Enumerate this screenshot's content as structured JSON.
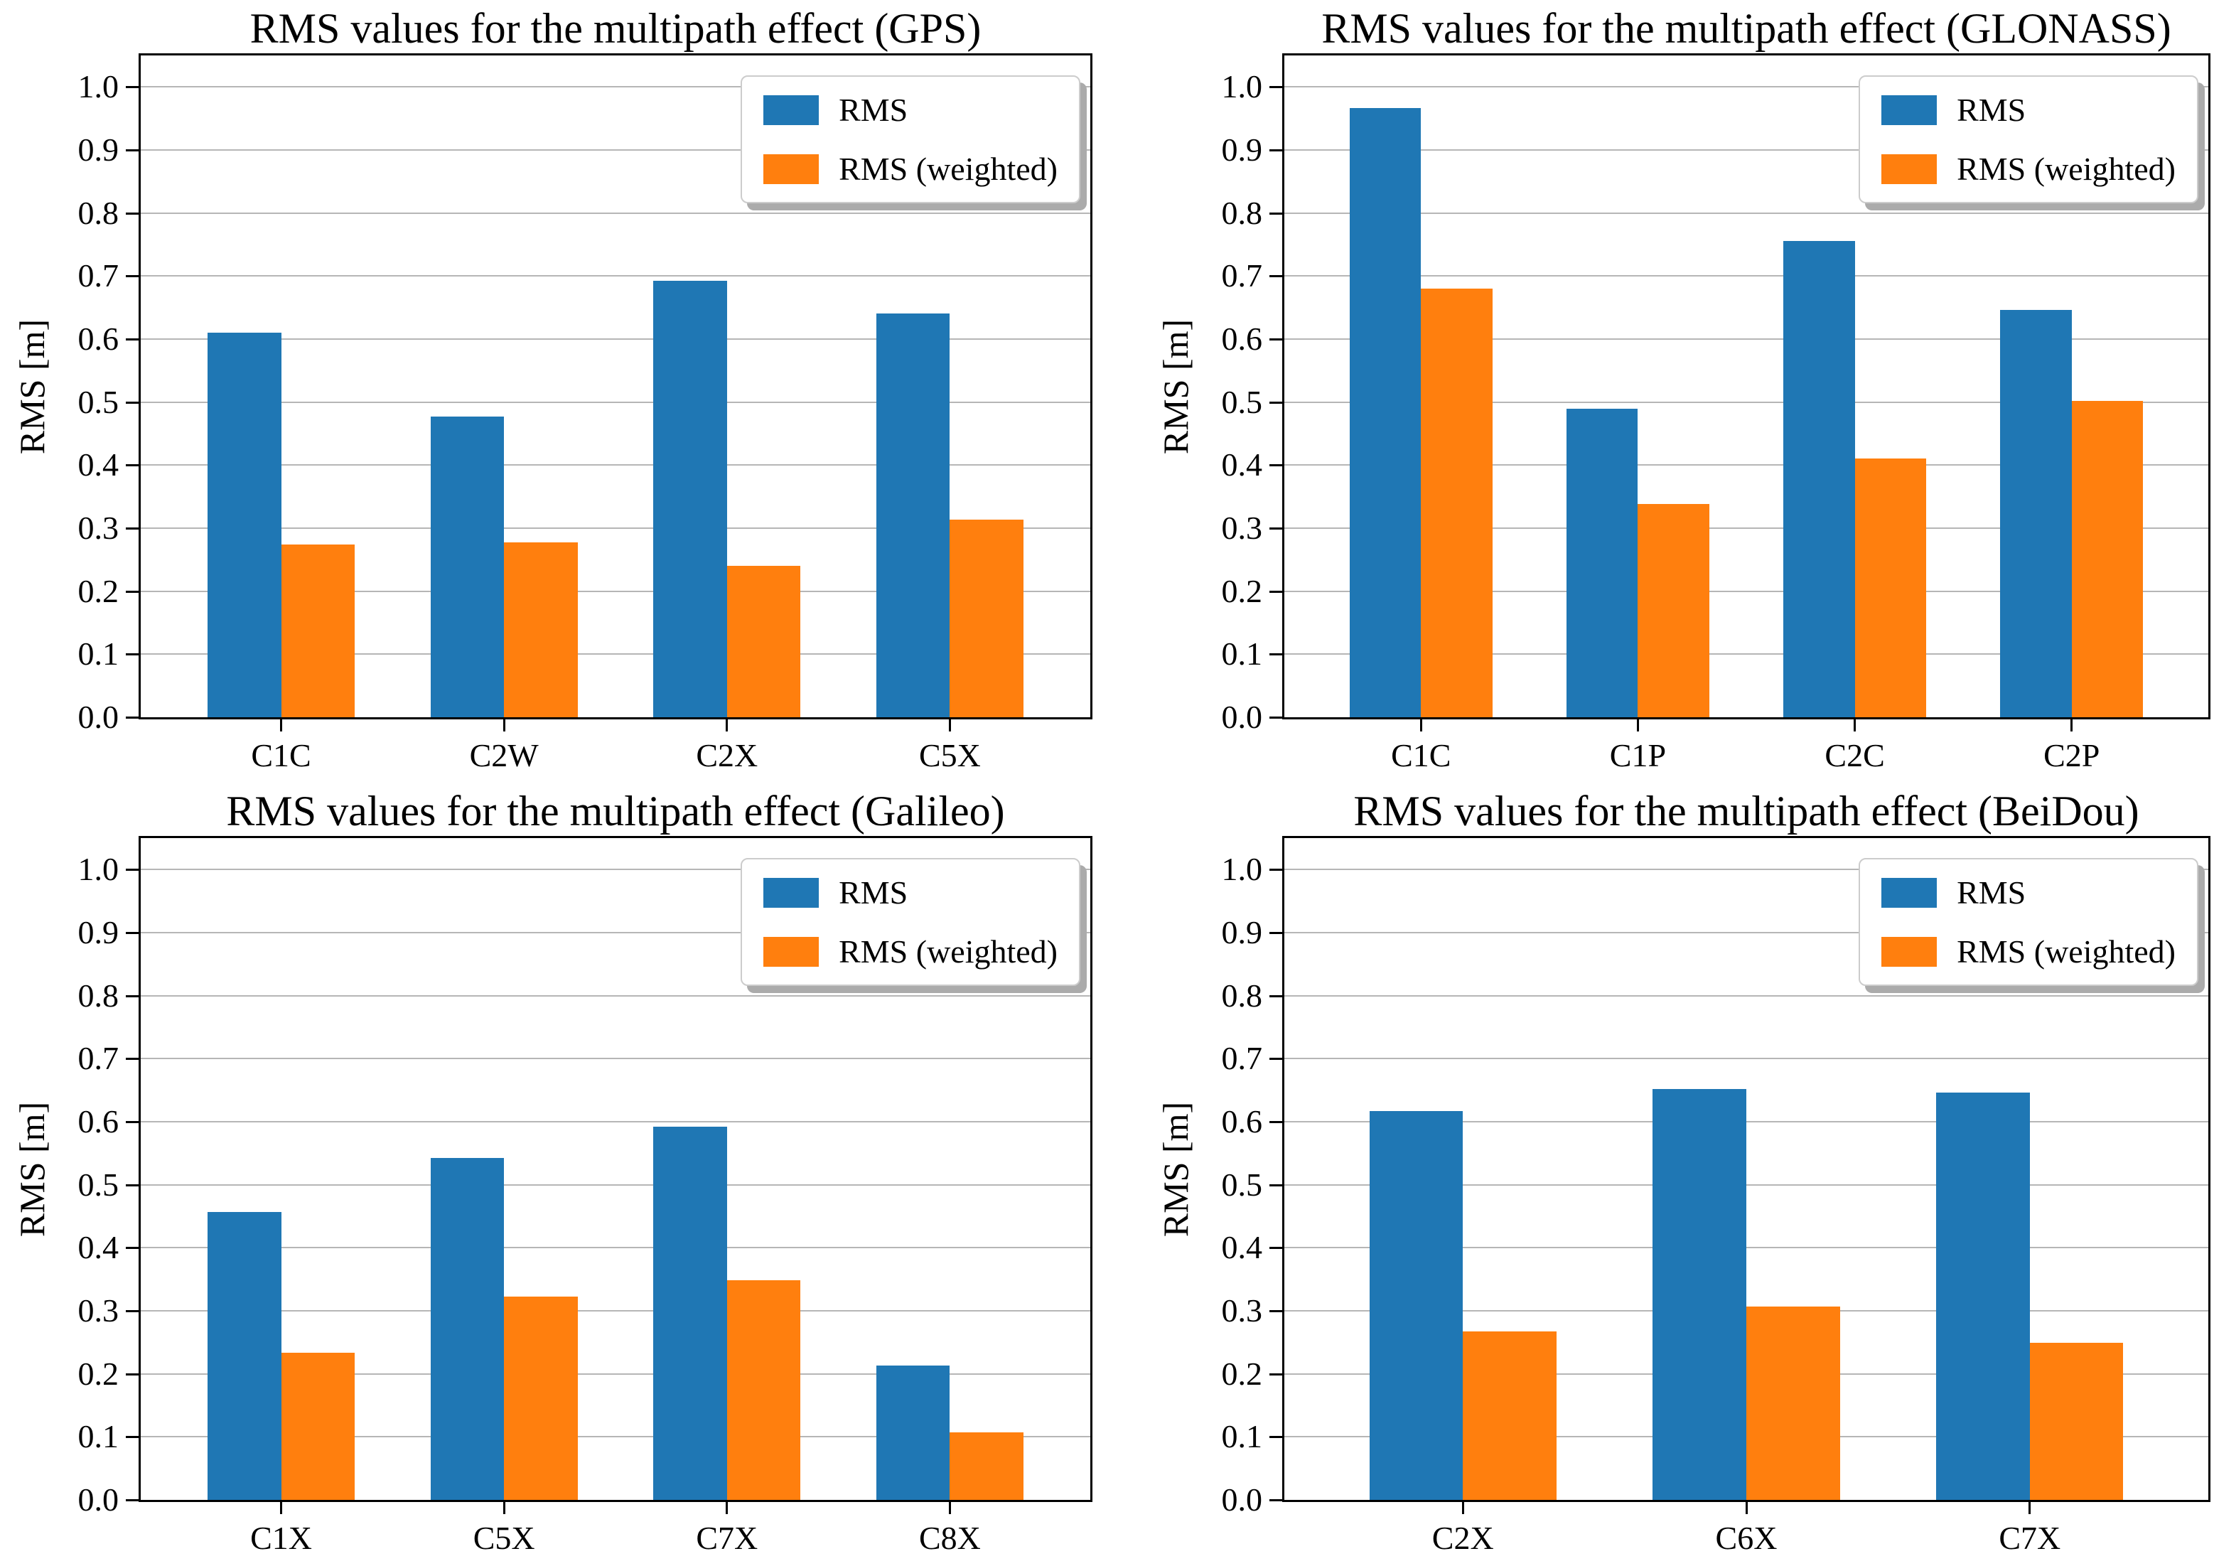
{
  "figure": {
    "background": "#ffffff",
    "series_colors": {
      "rms": "#1f77b4",
      "rms_weighted": "#ff7f0e"
    },
    "grid_color": "#b6b6b6"
  },
  "chart_data": [
    {
      "type": "bar",
      "system": "GPS",
      "title": "RMS values for the multipath effect (GPS)",
      "ylabel": "RMS [m]",
      "xlabel": "",
      "categories": [
        "C1C",
        "C2W",
        "C2X",
        "C5X"
      ],
      "series": [
        {
          "name": "RMS",
          "color": "#1f77b4",
          "values": [
            0.61,
            0.477,
            0.693,
            0.641
          ]
        },
        {
          "name": "RMS (weighted)",
          "color": "#ff7f0e",
          "values": [
            0.274,
            0.277,
            0.24,
            0.314
          ]
        }
      ],
      "ylim": [
        0,
        1.05
      ],
      "ytick_labels": [
        "0.0",
        "0.1",
        "0.2",
        "0.3",
        "0.4",
        "0.5",
        "0.6",
        "0.7",
        "0.8",
        "0.9",
        "1.0"
      ],
      "grid": true,
      "legend_position": "upper right"
    },
    {
      "type": "bar",
      "system": "GLONASS",
      "title": "RMS values for the multipath effect (GLONASS)",
      "ylabel": "RMS [m]",
      "xlabel": "",
      "categories": [
        "C1C",
        "C1P",
        "C2C",
        "C2P"
      ],
      "series": [
        {
          "name": "RMS",
          "color": "#1f77b4",
          "values": [
            0.967,
            0.49,
            0.756,
            0.646
          ]
        },
        {
          "name": "RMS (weighted)",
          "color": "#ff7f0e",
          "values": [
            0.68,
            0.338,
            0.411,
            0.502
          ]
        }
      ],
      "ylim": [
        0,
        1.05
      ],
      "ytick_labels": [
        "0.0",
        "0.1",
        "0.2",
        "0.3",
        "0.4",
        "0.5",
        "0.6",
        "0.7",
        "0.8",
        "0.9",
        "1.0"
      ],
      "grid": true,
      "legend_position": "upper right"
    },
    {
      "type": "bar",
      "system": "Galileo",
      "title": "RMS values for the multipath effect (Galileo)",
      "ylabel": "RMS [m]",
      "xlabel": "",
      "categories": [
        "C1X",
        "C5X",
        "C7X",
        "C8X"
      ],
      "series": [
        {
          "name": "RMS",
          "color": "#1f77b4",
          "values": [
            0.457,
            0.542,
            0.592,
            0.213
          ]
        },
        {
          "name": "RMS (weighted)",
          "color": "#ff7f0e",
          "values": [
            0.233,
            0.322,
            0.348,
            0.107
          ]
        }
      ],
      "ylim": [
        0,
        1.05
      ],
      "ytick_labels": [
        "0.0",
        "0.1",
        "0.2",
        "0.3",
        "0.4",
        "0.5",
        "0.6",
        "0.7",
        "0.8",
        "0.9",
        "1.0"
      ],
      "grid": true,
      "legend_position": "upper right"
    },
    {
      "type": "bar",
      "system": "BeiDou",
      "title": "RMS values for the multipath effect (BeiDou)",
      "ylabel": "RMS [m]",
      "xlabel": "",
      "categories": [
        "C2X",
        "C6X",
        "C7X"
      ],
      "series": [
        {
          "name": "RMS",
          "color": "#1f77b4",
          "values": [
            0.617,
            0.652,
            0.646
          ]
        },
        {
          "name": "RMS (weighted)",
          "color": "#ff7f0e",
          "values": [
            0.267,
            0.307,
            0.249
          ]
        }
      ],
      "ylim": [
        0,
        1.05
      ],
      "ytick_labels": [
        "0.0",
        "0.1",
        "0.2",
        "0.3",
        "0.4",
        "0.5",
        "0.6",
        "0.7",
        "0.8",
        "0.9",
        "1.0"
      ],
      "grid": true,
      "legend_position": "upper right"
    }
  ]
}
